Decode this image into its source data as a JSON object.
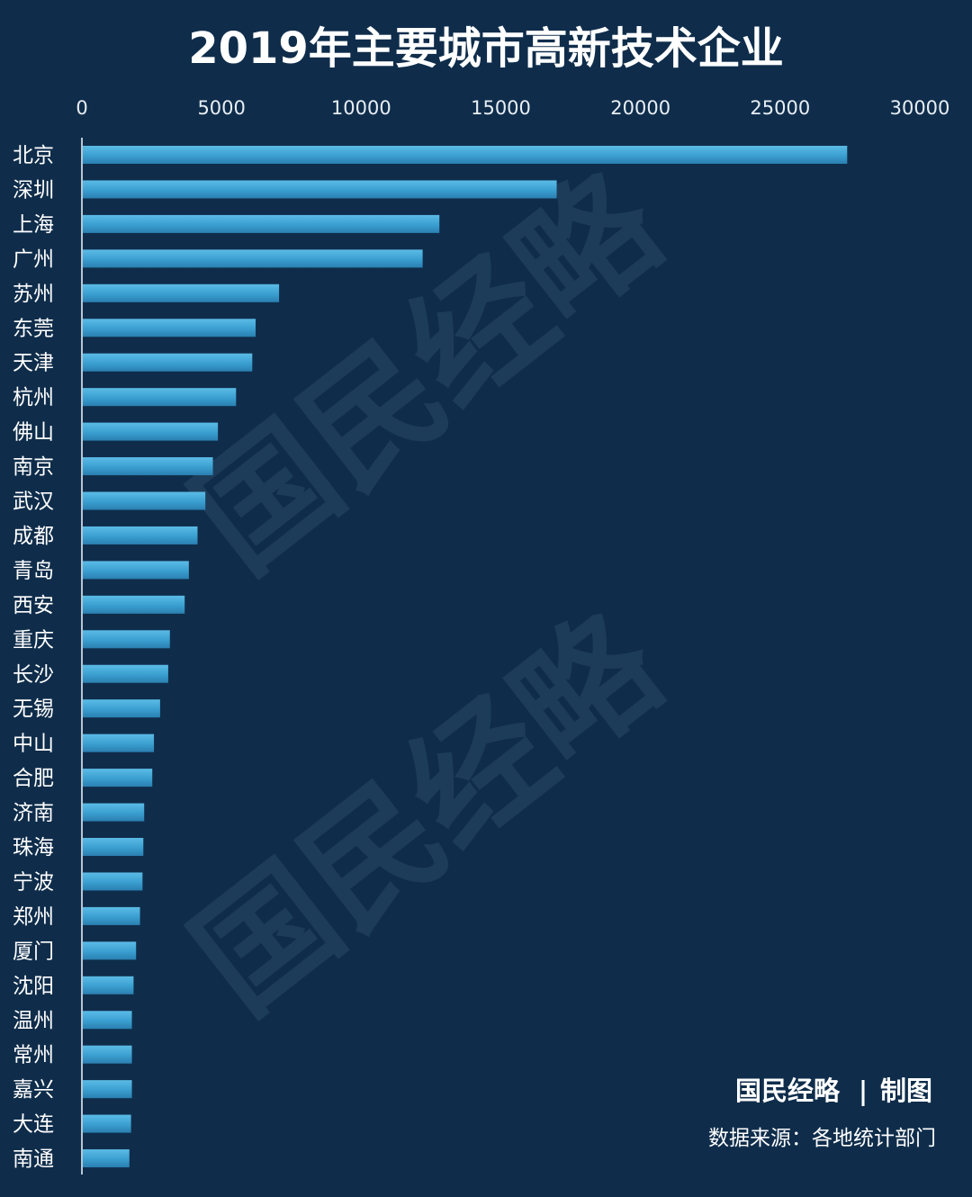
{
  "chart_data": {
    "type": "bar",
    "orientation": "horizontal",
    "title": "2019年主要城市高新技术企业",
    "xlim": [
      0,
      30000
    ],
    "x_ticks": [
      "0",
      "5000",
      "10000",
      "15000",
      "20000",
      "25000",
      "30000"
    ],
    "x_tick_values": [
      0,
      5000,
      10000,
      15000,
      20000,
      25000,
      30000
    ],
    "axis_position": "top",
    "grid": false,
    "categories": [
      "北京",
      "深圳",
      "上海",
      "广州",
      "苏州",
      "东莞",
      "天津",
      "杭州",
      "佛山",
      "南京",
      "武汉",
      "成都",
      "青岛",
      "西安",
      "重庆",
      "长沙",
      "无锡",
      "中山",
      "合肥",
      "济南",
      "珠海",
      "宁波",
      "郑州",
      "厦门",
      "沈阳",
      "温州",
      "常州",
      "嘉兴",
      "大连",
      "南通"
    ],
    "values": [
      27400,
      17000,
      12800,
      12200,
      7060,
      6220,
      6100,
      5520,
      4870,
      4690,
      4420,
      4140,
      3830,
      3680,
      3150,
      3090,
      2800,
      2580,
      2520,
      2230,
      2200,
      2170,
      2080,
      1940,
      1850,
      1790,
      1790,
      1790,
      1760,
      1700
    ],
    "bar_color": "#3a9fd0"
  },
  "watermark": [
    "国民经略",
    "国民经略"
  ],
  "footer": {
    "brand": "国民经略",
    "separator": "|",
    "made_by": "制图",
    "source": "数据来源：各地统计部门"
  }
}
